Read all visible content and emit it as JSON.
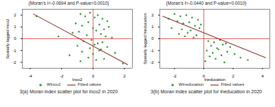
{
  "chart_data": [
    {
      "type": "scatter",
      "title": "(Moran's I=-0.0694 and P-value=0.0010)",
      "caption": "3(a) Moran index scatter plot for lnco2 in 2020",
      "x_label": "lnco2",
      "y_label": "Spatially lagged lnco2",
      "xlim": [
        -4.5,
        2.5
      ],
      "xticks": [
        -4,
        -2,
        0,
        2
      ],
      "ylim": [
        -2.5,
        2.5
      ],
      "yticks": [
        -2,
        -1,
        0,
        1,
        2
      ],
      "hline": 0,
      "vline": 0,
      "line_color": "#e03030",
      "legend": "bottom",
      "grid": false,
      "series": [
        {
          "name": "Wlnco2",
          "type": "scatter",
          "marker": "circle",
          "color": "#3a9a3a",
          "x": [
            -0.8,
            -0.5,
            -0.2,
            0.1,
            0.3,
            0.6,
            0.9,
            -1.1,
            -0.7,
            -0.3,
            0.0,
            0.4,
            0.7,
            1.0,
            -1.3,
            -0.9,
            -0.4,
            0.2,
            0.5,
            0.8,
            1.2,
            -0.6,
            -0.1,
            0.3,
            0.6,
            -1.0,
            -0.2,
            0.1,
            0.5,
            0.9,
            -0.7,
            0.0,
            0.4,
            -1.5,
            1.4,
            -0.3,
            0.2,
            -0.8,
            0.7,
            -3.6,
            1.9,
            -2.2
          ],
          "values": [
            2.1,
            1.9,
            2.2,
            1.8,
            2.0,
            1.7,
            1.5,
            1.3,
            1.1,
            1.4,
            0.9,
            1.2,
            0.8,
            1.0,
            0.5,
            0.6,
            0.3,
            0.7,
            0.4,
            0.2,
            0.1,
            -0.2,
            -0.1,
            -0.4,
            -0.3,
            -0.6,
            -0.8,
            -0.5,
            -0.9,
            -0.7,
            -1.1,
            -1.3,
            -1.0,
            -1.4,
            -1.2,
            -1.6,
            -1.8,
            -1.9,
            -1.7,
            1.9,
            -2.1,
            0.2
          ]
        },
        {
          "name": "Fitted values",
          "type": "line",
          "line_style": "solid",
          "color": "#8b2a2a",
          "x": [
            -3.8,
            2.2
          ],
          "values": [
            2.1,
            -2.2
          ]
        }
      ]
    },
    {
      "type": "scatter",
      "title": "(Moran's I=-0.0440 and P-value=0.0010)",
      "caption": "3(b) Moran index scatter plot for lneducation in 2020",
      "x_label": "lneducation",
      "y_label": "Spatially lagged lneducation",
      "xlim": [
        -3,
        4.5
      ],
      "xticks": [
        -2,
        0,
        2,
        4
      ],
      "ylim": [
        -2.5,
        2.5
      ],
      "yticks": [
        -2,
        -1,
        0,
        1,
        2
      ],
      "hline": 0,
      "vline": 0,
      "line_color": "#e03030",
      "legend": "bottom",
      "grid": false,
      "series": [
        {
          "name": "Wlneducation",
          "type": "scatter",
          "marker": "circle",
          "color": "#3a9a3a",
          "x": [
            -2.0,
            -1.6,
            -1.2,
            -0.8,
            -0.4,
            -1.8,
            -1.4,
            -1.0,
            -0.6,
            -0.2,
            -2.2,
            -1.5,
            -0.9,
            -0.3,
            -1.7,
            -1.1,
            -0.5,
            -1.3,
            -0.7,
            -2.4,
            0.3,
            0.7,
            1.1,
            1.5,
            0.5,
            0.9,
            1.3,
            1.8,
            0.2,
            0.6,
            1.0,
            1.6,
            2.1,
            0.4,
            0.8,
            1.2,
            2.5,
            0.1,
            1.4,
            3.0
          ],
          "values": [
            2.1,
            1.9,
            2.0,
            1.8,
            1.6,
            1.5,
            1.3,
            1.4,
            1.1,
            1.2,
            0.9,
            0.8,
            0.7,
            0.9,
            0.4,
            0.5,
            0.3,
            0.2,
            0.1,
            1.7,
            -0.2,
            -0.3,
            -0.1,
            -0.4,
            -0.6,
            -0.8,
            -0.5,
            -0.7,
            -1.0,
            -1.2,
            -0.9,
            -1.1,
            -1.3,
            -1.5,
            -1.7,
            -1.4,
            -1.6,
            -1.9,
            -2.0,
            -1.8
          ]
        },
        {
          "name": "Fitted values",
          "type": "line",
          "line_style": "solid",
          "color": "#8b2a2a",
          "x": [
            -2.8,
            4.2
          ],
          "values": [
            1.9,
            -1.6
          ]
        }
      ]
    }
  ]
}
